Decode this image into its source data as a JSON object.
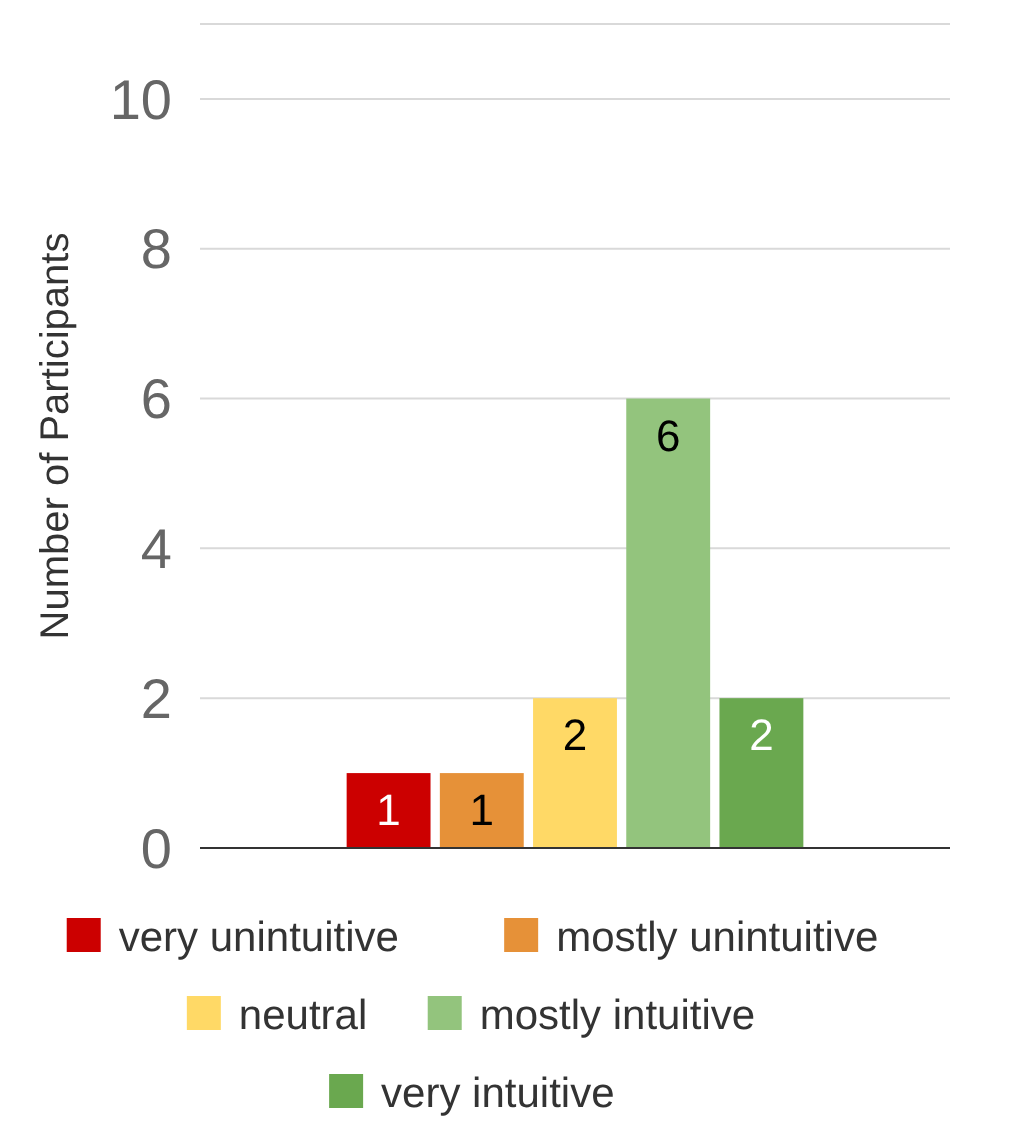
{
  "chart_data": {
    "type": "bar",
    "ylabel": "Number of Participants",
    "categories": [
      null
    ],
    "series": [
      {
        "name": "very unintuitive",
        "color": "#cc0000",
        "values": [
          1
        ]
      },
      {
        "name": "mostly unintuitive",
        "color": "#e69138",
        "values": [
          1
        ]
      },
      {
        "name": "neutral",
        "color": "#ffd966",
        "values": [
          2
        ]
      },
      {
        "name": "mostly intuitive",
        "color": "#93c47d",
        "values": [
          6
        ]
      },
      {
        "name": "very intuitive",
        "color": "#6aa84f",
        "values": [
          2
        ]
      }
    ],
    "ylim": [
      0,
      11
    ],
    "yticks": [
      0,
      2,
      4,
      6,
      8,
      10
    ],
    "grid": "y",
    "legend": "bottom",
    "data_labels": true
  }
}
